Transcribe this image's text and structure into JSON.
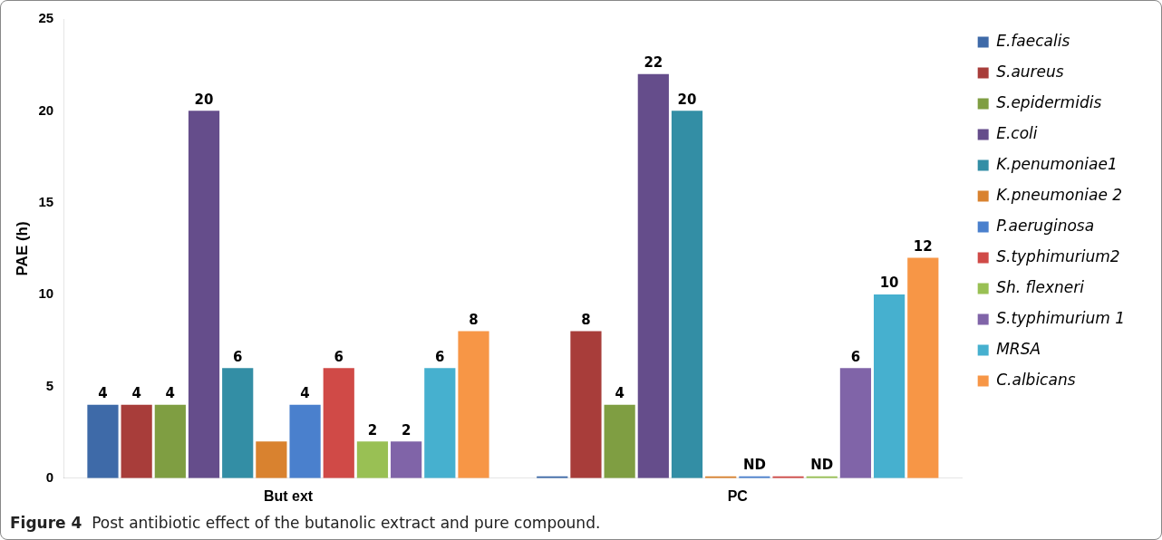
{
  "chart_data": {
    "type": "bar",
    "ylabel": "PAE (h)",
    "categories": [
      "But ext",
      "PC"
    ],
    "series": [
      {
        "name": "E.faecalis",
        "color": "#3e6aa8",
        "values": [
          4,
          0
        ],
        "value_labels": [
          "4",
          null
        ]
      },
      {
        "name": "S.aureus",
        "color": "#a83d3a",
        "values": [
          4,
          8
        ],
        "value_labels": [
          "4",
          "8"
        ]
      },
      {
        "name": "S.epidermidis",
        "color": "#7f9e42",
        "values": [
          4,
          4
        ],
        "value_labels": [
          "4",
          "4"
        ]
      },
      {
        "name": "E.coli",
        "color": "#654d8b",
        "values": [
          20,
          22
        ],
        "value_labels": [
          "20",
          "22"
        ]
      },
      {
        "name": "K.penumoniae1",
        "color": "#338ea5",
        "values": [
          6,
          20
        ],
        "value_labels": [
          "6",
          "20"
        ]
      },
      {
        "name": "K.pneumoniae 2",
        "color": "#d9822f",
        "values": [
          2,
          0
        ],
        "value_labels": [
          null,
          null
        ]
      },
      {
        "name": "P.aeruginosa",
        "color": "#4a80cd",
        "values": [
          4,
          0
        ],
        "value_labels": [
          "4",
          "ND"
        ]
      },
      {
        "name": "S.typhimurium2",
        "color": "#d04a47",
        "values": [
          6,
          0
        ],
        "value_labels": [
          "6",
          null
        ]
      },
      {
        "name": "Sh. flexneri",
        "color": "#99c054",
        "values": [
          2,
          0
        ],
        "value_labels": [
          "2",
          "ND"
        ]
      },
      {
        "name": "S.typhimurium 1",
        "color": "#8064a8",
        "values": [
          2,
          6
        ],
        "value_labels": [
          "2",
          "6"
        ]
      },
      {
        "name": "MRSA",
        "color": "#46b0cf",
        "values": [
          6,
          10
        ],
        "value_labels": [
          "6",
          "10"
        ]
      },
      {
        "name": "C.albicans",
        "color": "#f79646",
        "values": [
          8,
          12
        ],
        "value_labels": [
          "8",
          "12"
        ]
      }
    ],
    "ylim": [
      0,
      25
    ],
    "yticks": [
      0,
      5,
      10,
      15,
      20,
      25
    ],
    "grid": false,
    "legend": "right",
    "annotations": [
      "Figure 4  Post antibiotic effect of the butanolic extract and pure compound."
    ]
  }
}
